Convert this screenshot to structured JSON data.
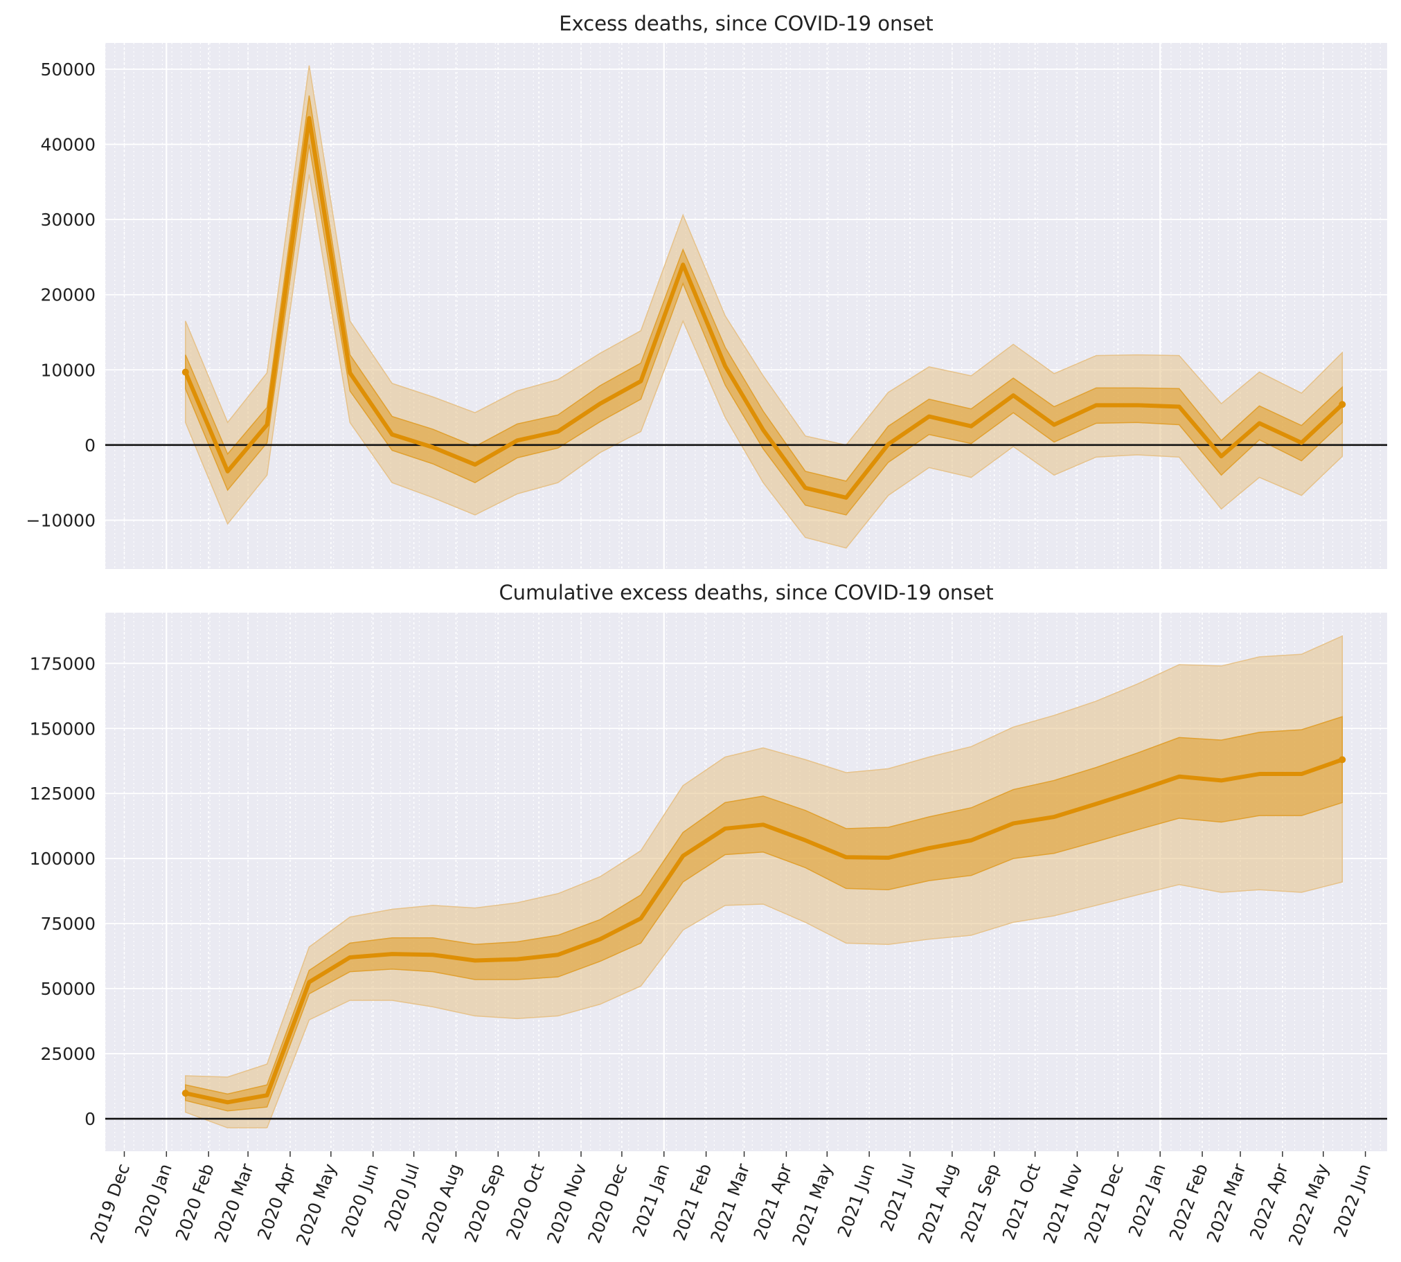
{
  "chart_data": [
    {
      "type": "line",
      "title": "Excess deaths, since COVID-19 onset",
      "xlabel": "",
      "ylabel": "",
      "x": [
        "2020-01-15",
        "2020-02-15",
        "2020-03-15",
        "2020-04-15",
        "2020-05-15",
        "2020-06-15",
        "2020-07-15",
        "2020-08-15",
        "2020-09-15",
        "2020-10-15",
        "2020-11-15",
        "2020-12-15",
        "2021-01-15",
        "2021-02-15",
        "2021-03-15",
        "2021-04-15",
        "2021-05-15",
        "2021-06-15",
        "2021-07-15",
        "2021-08-15",
        "2021-09-15",
        "2021-10-15",
        "2021-11-15",
        "2021-12-15",
        "2022-01-15",
        "2022-02-15",
        "2022-03-15",
        "2022-04-15",
        "2022-05-15"
      ],
      "median": [
        9700,
        -3500,
        2700,
        43500,
        9600,
        1400,
        -300,
        -2600,
        600,
        1800,
        5500,
        8500,
        24000,
        10500,
        2000,
        -5700,
        -7000,
        100,
        3800,
        2500,
        6600,
        2700,
        5300,
        5300,
        5100,
        -1500,
        2900,
        300,
        5400
      ],
      "inner_lower": [
        7500,
        -6000,
        300,
        40000,
        7200,
        -700,
        -2500,
        -5000,
        -1700,
        -400,
        3100,
        6100,
        21500,
        8000,
        -500,
        -8000,
        -9300,
        -2300,
        1400,
        200,
        4300,
        400,
        2900,
        3000,
        2700,
        -4000,
        700,
        -2100,
        3000
      ],
      "inner_upper": [
        12000,
        -1200,
        5000,
        46500,
        12000,
        3800,
        2100,
        -200,
        2800,
        4000,
        7900,
        10900,
        26000,
        13000,
        4500,
        -3500,
        -4800,
        2500,
        6100,
        4800,
        8900,
        5100,
        7600,
        7600,
        7500,
        600,
        5200,
        2600,
        7700
      ],
      "outer_lower": [
        3000,
        -10500,
        -4000,
        36000,
        3000,
        -5000,
        -7000,
        -9300,
        -6500,
        -5000,
        -1000,
        1800,
        16500,
        3700,
        -5000,
        -12300,
        -13700,
        -6700,
        -3000,
        -4300,
        -200,
        -4000,
        -1600,
        -1300,
        -1600,
        -8500,
        -4300,
        -6700,
        -1500
      ],
      "outer_upper": [
        16500,
        3000,
        9600,
        50500,
        16500,
        8200,
        6400,
        4300,
        7200,
        8700,
        12200,
        15200,
        30600,
        17200,
        9200,
        1200,
        0,
        7000,
        10400,
        9200,
        13400,
        9500,
        11900,
        12000,
        11900,
        5500,
        9700,
        6900,
        12300
      ],
      "x_ticks": [
        "2019 Dec",
        "2020 Jan",
        "2020 Feb",
        "2020 Mar",
        "2020 Apr",
        "2020 May",
        "2020 Jun",
        "2020 Jul",
        "2020 Aug",
        "2020 Sep",
        "2020 Oct",
        "2020 Nov",
        "2020 Dec",
        "2021 Jan",
        "2021 Feb",
        "2021 Mar",
        "2021 Apr",
        "2021 May",
        "2021 Jun",
        "2021 Jul",
        "2021 Aug",
        "2021 Sep",
        "2021 Oct",
        "2021 Nov",
        "2021 Dec",
        "2022 Jan",
        "2022 Feb",
        "2022 Mar",
        "2022 Apr",
        "2022 May",
        "2022 Jun"
      ],
      "y_ticks": [
        -10000,
        0,
        10000,
        20000,
        30000,
        40000,
        50000
      ],
      "ylim": [
        -16500,
        53500
      ],
      "xlim": [
        "2019-11-17",
        "2022-06-17"
      ],
      "grid": true,
      "zero_line": true
    },
    {
      "type": "line",
      "title": "Cumulative excess deaths, since COVID-19 onset",
      "xlabel": "",
      "ylabel": "",
      "x": [
        "2020-01-15",
        "2020-02-15",
        "2020-03-15",
        "2020-04-15",
        "2020-05-15",
        "2020-06-15",
        "2020-07-15",
        "2020-08-15",
        "2020-09-15",
        "2020-10-15",
        "2020-11-15",
        "2020-12-15",
        "2021-01-15",
        "2021-02-15",
        "2021-03-15",
        "2021-04-15",
        "2021-05-15",
        "2021-06-15",
        "2021-07-15",
        "2021-08-15",
        "2021-09-15",
        "2021-10-15",
        "2021-11-15",
        "2021-12-15",
        "2022-01-15",
        "2022-02-15",
        "2022-03-15",
        "2022-04-15",
        "2022-05-15"
      ],
      "median": [
        9800,
        6300,
        9000,
        52500,
        62000,
        63300,
        63000,
        60800,
        61300,
        63000,
        69000,
        77000,
        101000,
        111500,
        113000,
        107000,
        100500,
        100300,
        104000,
        107000,
        113500,
        116000,
        121000,
        126000,
        131500,
        130000,
        132500,
        132500,
        138000
      ],
      "inner_lower": [
        7000,
        3000,
        4500,
        48000,
        56500,
        57500,
        56500,
        53500,
        53500,
        54500,
        60500,
        67500,
        91000,
        101500,
        102500,
        96500,
        88500,
        88000,
        91500,
        93500,
        100000,
        102000,
        106500,
        111000,
        115500,
        114000,
        116500,
        116500,
        121500
      ],
      "inner_upper": [
        13000,
        9500,
        13000,
        57000,
        67500,
        69500,
        69500,
        67000,
        68000,
        70500,
        76500,
        86000,
        110000,
        121500,
        124000,
        118500,
        111500,
        112000,
        116000,
        119500,
        126500,
        130000,
        135000,
        140500,
        146500,
        145500,
        148500,
        149500,
        154500
      ],
      "outer_lower": [
        2500,
        -3500,
        -3500,
        38000,
        45500,
        45500,
        43000,
        39500,
        38500,
        39500,
        44000,
        51000,
        72500,
        82000,
        82500,
        75500,
        67500,
        67000,
        69000,
        70500,
        75500,
        78000,
        82000,
        86000,
        90000,
        87000,
        88000,
        87000,
        91000
      ],
      "outer_upper": [
        16500,
        16000,
        21000,
        66000,
        77500,
        80500,
        82000,
        81000,
        83000,
        86500,
        93000,
        103000,
        128000,
        139000,
        142500,
        138000,
        133000,
        134500,
        139000,
        143000,
        150500,
        155000,
        160500,
        167000,
        174500,
        174000,
        177500,
        178500,
        185500
      ],
      "x_ticks": [
        "2019 Dec",
        "2020 Jan",
        "2020 Feb",
        "2020 Mar",
        "2020 Apr",
        "2020 May",
        "2020 Jun",
        "2020 Jul",
        "2020 Aug",
        "2020 Sep",
        "2020 Oct",
        "2020 Nov",
        "2020 Dec",
        "2021 Jan",
        "2021 Feb",
        "2021 Mar",
        "2021 Apr",
        "2021 May",
        "2021 Jun",
        "2021 Jul",
        "2021 Aug",
        "2021 Sep",
        "2021 Oct",
        "2021 Nov",
        "2021 Dec",
        "2022 Jan",
        "2022 Feb",
        "2022 Mar",
        "2022 Apr",
        "2022 May",
        "2022 Jun"
      ],
      "y_ticks": [
        0,
        25000,
        50000,
        75000,
        100000,
        125000,
        150000,
        175000
      ],
      "ylim": [
        -12500,
        194500
      ],
      "xlim": [
        "2019-11-17",
        "2022-06-17"
      ],
      "grid": true,
      "zero_line": true
    }
  ],
  "colors": {
    "plot_background": "#eaeaf2",
    "grid": "#ffffff",
    "line": "#de8f05",
    "inner_band": "#e0a030",
    "outer_band": "#e6c28a",
    "zero_line": "#111111",
    "text": "#222222"
  }
}
